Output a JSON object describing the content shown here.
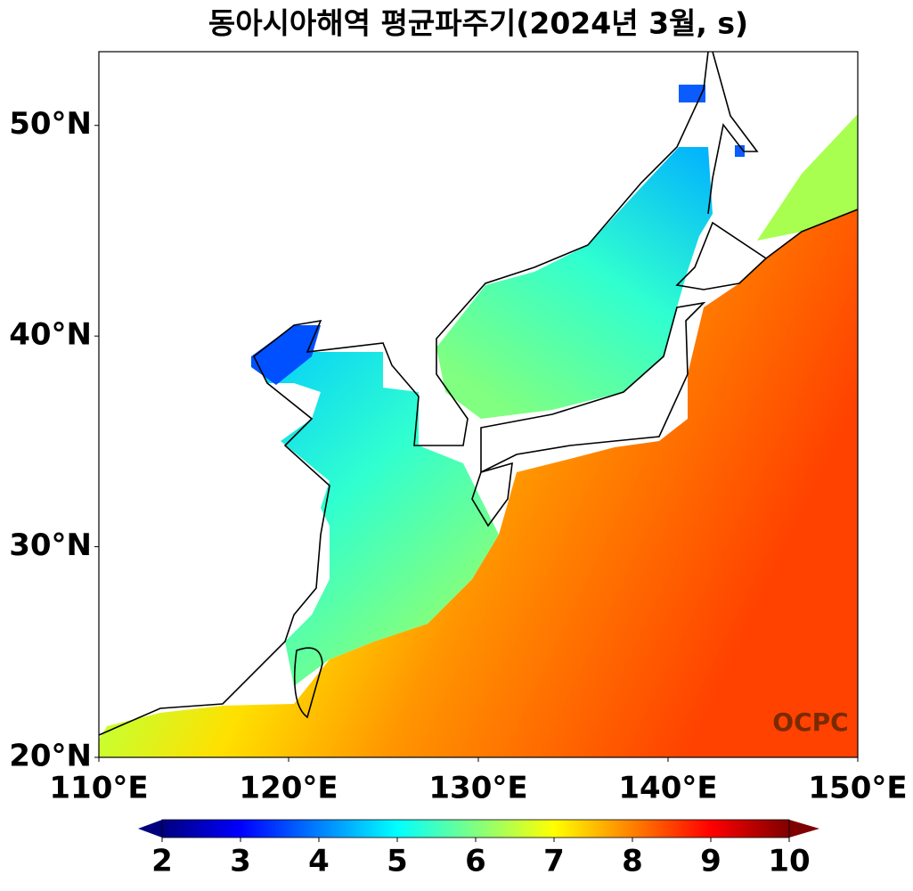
{
  "title": "동아시아해역 평균파주기(2024년 3월, s)",
  "map": {
    "xlim": [
      110,
      150
    ],
    "ylim": [
      20,
      53.5
    ],
    "xticks": [
      {
        "value": 110,
        "label": "110°E"
      },
      {
        "value": 120,
        "label": "120°E"
      },
      {
        "value": 130,
        "label": "130°E"
      },
      {
        "value": 140,
        "label": "140°E"
      },
      {
        "value": 150,
        "label": "150°E"
      }
    ],
    "yticks": [
      {
        "value": 20,
        "label": "20°N"
      },
      {
        "value": 30,
        "label": "30°N"
      },
      {
        "value": 40,
        "label": "40°N"
      },
      {
        "value": 50,
        "label": "50°N"
      }
    ]
  },
  "colorbar": {
    "lim": [
      2,
      10
    ],
    "ticks": [
      2,
      3,
      4,
      5,
      6,
      7,
      8,
      9,
      10
    ],
    "cmap": "jet",
    "extend": "both"
  },
  "watermark": "OCPC"
}
